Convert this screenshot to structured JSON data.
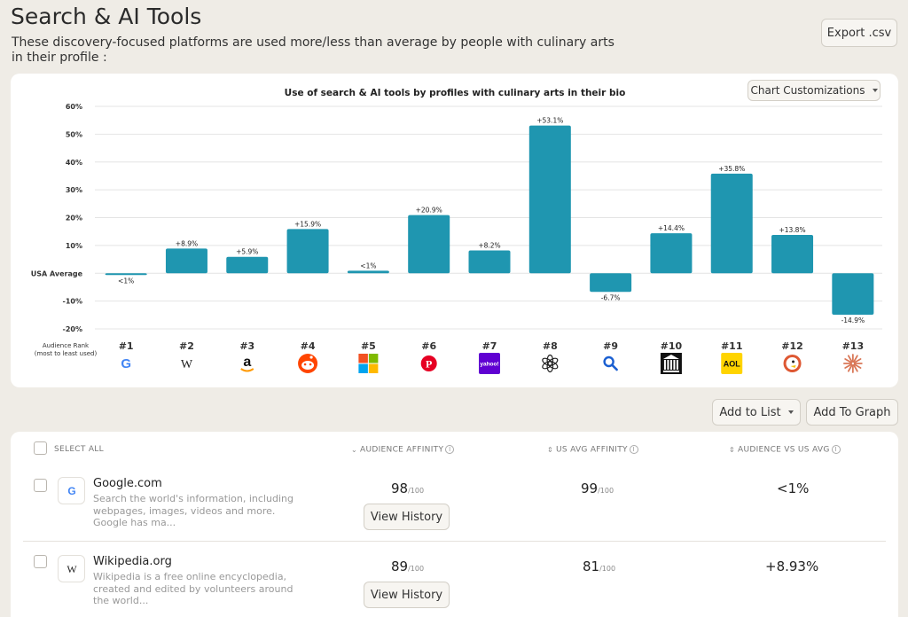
{
  "header": {
    "title": "Search & AI Tools",
    "subtitle": "These discovery-focused platforms are used more/less than average by people with culinary arts in their profile :",
    "export_label": "Export .csv"
  },
  "chart_controls": {
    "customize_label": "Chart Customizations"
  },
  "chart_data": {
    "type": "bar",
    "title": "Use of search & AI tools by profiles with culinary arts in their bio",
    "y_ticks": [
      "60%",
      "50%",
      "40%",
      "30%",
      "20%",
      "10%",
      "USA Average",
      "-10%",
      "-20%"
    ],
    "ylim": [
      -20,
      60
    ],
    "rank_label_line1": "Audience Rank",
    "rank_label_line2": "(most to least used)",
    "categories": [
      "#1",
      "#2",
      "#3",
      "#4",
      "#5",
      "#6",
      "#7",
      "#8",
      "#9",
      "#10",
      "#11",
      "#12",
      "#13"
    ],
    "values": [
      -0.5,
      8.9,
      5.9,
      15.9,
      0.9,
      20.9,
      8.2,
      53.1,
      -6.7,
      14.4,
      35.8,
      13.8,
      -14.9
    ],
    "labels": [
      "<1%",
      "+8.9%",
      "+5.9%",
      "+15.9%",
      "<1%",
      "+20.9%",
      "+8.2%",
      "+53.1%",
      "-6.7%",
      "+14.4%",
      "+35.8%",
      "+13.8%",
      "-14.9%"
    ],
    "icons": [
      "google-icon",
      "wikipedia-icon",
      "amazon-icon",
      "reddit-icon",
      "microsoft-icon",
      "pinterest-icon",
      "yahoo-icon",
      "openai-icon",
      "search-icon",
      "library-icon",
      "aol-icon",
      "duckduckgo-icon",
      "claude-icon"
    ],
    "bar_color": "#1f96b0",
    "grid": true
  },
  "actions": {
    "add_to_list": "Add to List",
    "add_to_graph": "Add To Graph"
  },
  "table": {
    "select_all": "SELECT ALL",
    "col_audience": "AUDIENCE AFFINITY",
    "col_us_avg": "US AVG AFFINITY",
    "col_vs": "AUDIENCE VS US AVG",
    "rows": [
      {
        "name": "Google.com",
        "description": "Search the world's information, including webpages, images, videos and more. Google has ma...",
        "audience": "98",
        "us_avg": "99",
        "vs": "<1%",
        "denom": "/100",
        "history": "View History"
      },
      {
        "name": "Wikipedia.org",
        "description": "Wikipedia is a free online encyclopedia, created and edited by volunteers around the world...",
        "audience": "89",
        "us_avg": "81",
        "vs": "+8.93%",
        "denom": "/100",
        "history": "View History"
      }
    ]
  }
}
